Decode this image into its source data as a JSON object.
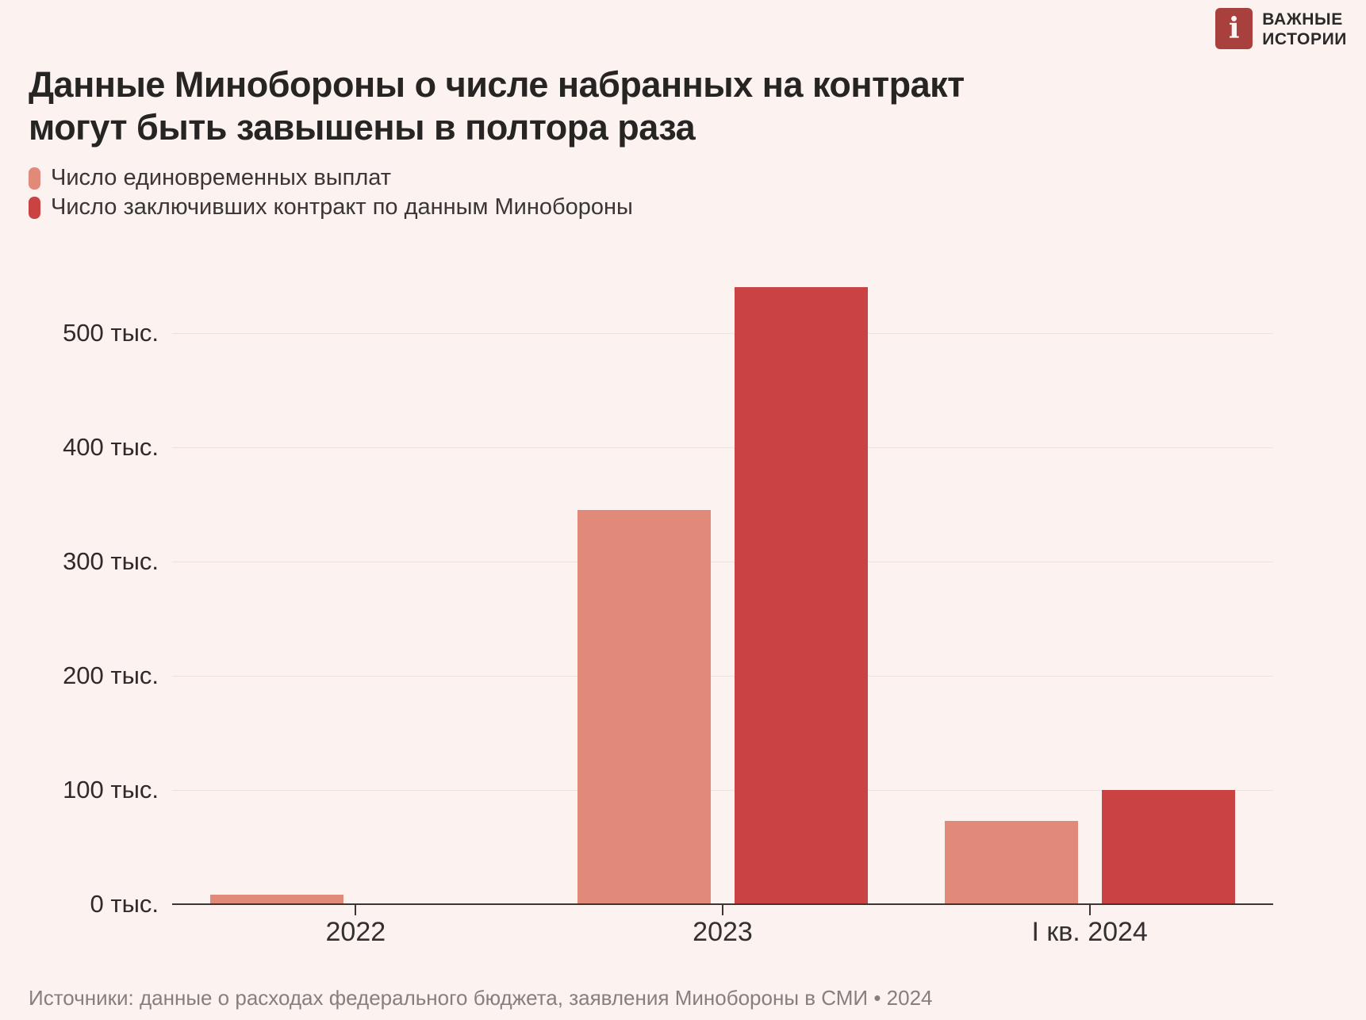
{
  "brand": {
    "icon": "istories-i-logo",
    "icon_glyph": "i",
    "icon_color": "#a8403e",
    "name_line1": "ВАЖНЫЕ",
    "name_line2": "ИСТОРИИ"
  },
  "title": {
    "line1": "Данные Минобороны о числе набранных на контракт",
    "line2": "могут быть завышены в полтора раза"
  },
  "legend": [
    {
      "label": "Число единовременных выплат",
      "color": "#e28a79"
    },
    {
      "label": "Число заключивших контракт по данным Минобороны",
      "color": "#c94343"
    }
  ],
  "chart_data": {
    "type": "bar",
    "categories": [
      "2022",
      "2023",
      "I кв. 2024"
    ],
    "series": [
      {
        "name": "Число единовременных выплат",
        "color": "#e28a79",
        "values": [
          8,
          345,
          73
        ]
      },
      {
        "name": "Число заключивших контракт по данным Минобороны",
        "color": "#c94343",
        "values": [
          null,
          540,
          100
        ]
      }
    ],
    "unit": "тыс.",
    "y_ticks": [
      {
        "value": 0,
        "label": "0 тыс."
      },
      {
        "value": 100,
        "label": "100 тыс."
      },
      {
        "value": 200,
        "label": "200 тыс."
      },
      {
        "value": 300,
        "label": "300 тыс."
      },
      {
        "value": 400,
        "label": "400 тыс."
      },
      {
        "value": 500,
        "label": "500 тыс."
      }
    ],
    "ylim": [
      0,
      560
    ],
    "grid": "horizontal",
    "legend_position": "top-left"
  },
  "footer": {
    "source": "Источники: данные о расходах федерального бюджета, заявления Минобороны в СМИ • 2024"
  }
}
